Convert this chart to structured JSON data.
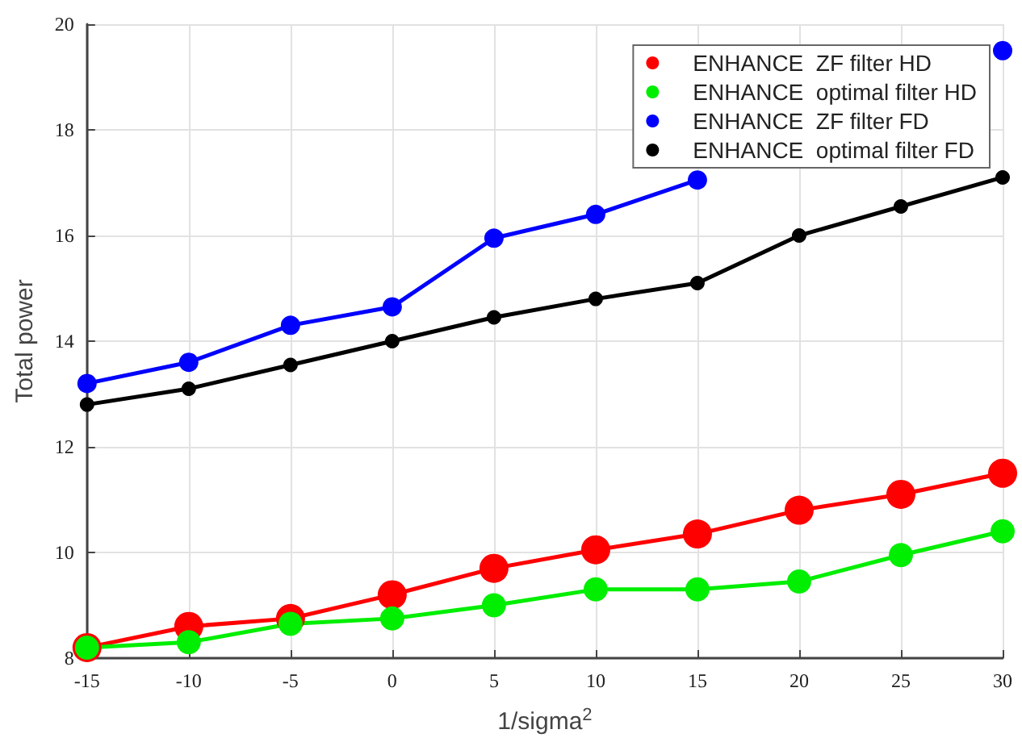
{
  "chart_data": {
    "type": "line",
    "xlabel": "1/sigma$^{2}$",
    "ylabel": "Total power",
    "x": [
      -15,
      -10,
      -5,
      0,
      5,
      10,
      15,
      20,
      25,
      30
    ],
    "series": [
      {
        "name": "ENHANCE  ZF filter HD",
        "color": "#ff0000",
        "values": [
          8.2,
          8.6,
          8.75,
          9.2,
          9.7,
          10.05,
          10.35,
          10.8,
          11.1,
          11.5
        ]
      },
      {
        "name": "ENHANCE  optimal filter HD",
        "color": "#00ee00",
        "values": [
          8.2,
          8.3,
          8.65,
          8.75,
          9.0,
          9.3,
          9.3,
          9.45,
          9.95,
          10.4
        ]
      },
      {
        "name": "ENHANCE  ZF filter FD",
        "color": "#0000ff",
        "values": [
          13.2,
          13.6,
          14.3,
          14.65,
          15.95,
          16.4,
          17.05,
          null,
          null,
          19.5
        ]
      },
      {
        "name": "ENHANCE  optimal filter FD",
        "color": "#000000",
        "values": [
          12.8,
          13.1,
          13.55,
          14.0,
          14.45,
          14.8,
          15.1,
          16.0,
          16.55,
          17.1
        ]
      }
    ],
    "xlim": [
      -15,
      30
    ],
    "xticks": [
      -15,
      -10,
      -5,
      0,
      5,
      10,
      15,
      20,
      25,
      30
    ],
    "ylim": [
      8,
      20
    ],
    "yticks": [
      8,
      10,
      12,
      14,
      16,
      18,
      20
    ],
    "grid": true,
    "legend": "top right",
    "marker": "circle",
    "line_style": "solid"
  }
}
